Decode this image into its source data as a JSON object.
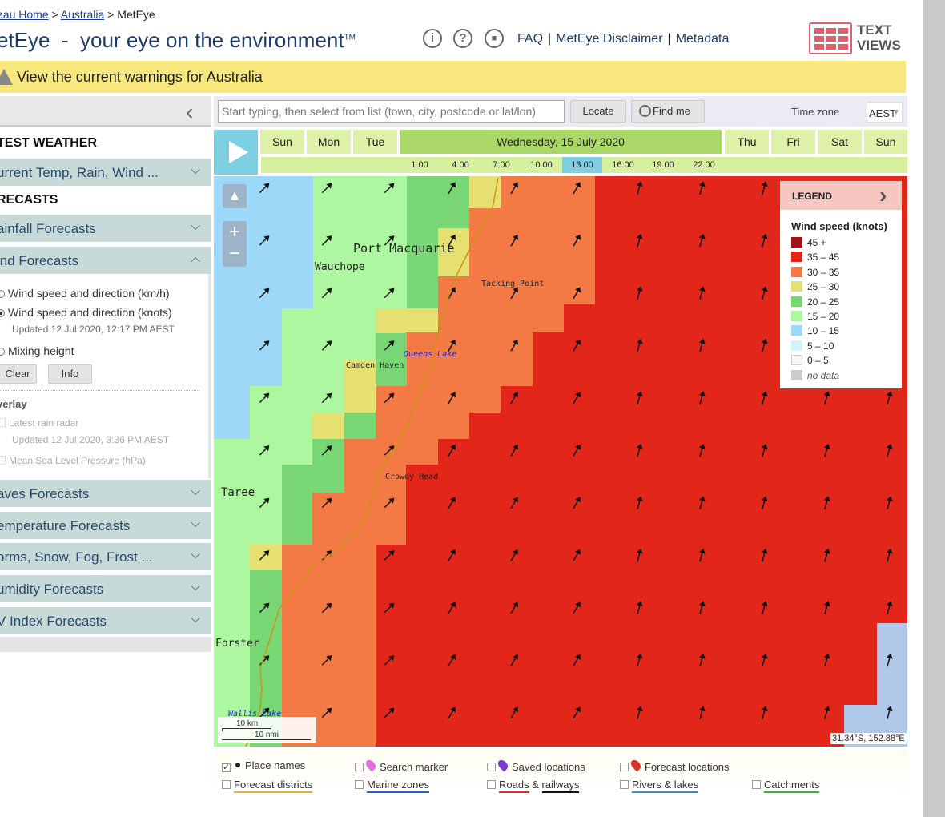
{
  "breadcrumbs": {
    "home": "eau Home",
    "sep1": ">",
    "country": "Australia",
    "sep2": ">",
    "current": "MetEye"
  },
  "header": {
    "title": "etEye  -  your eye on the environment",
    "tm": "TM",
    "info_label": "i",
    "help_label": "?",
    "comment_label": "■"
  },
  "toplinks": {
    "faq": "FAQ",
    "disclaimer": "MetEye Disclaimer",
    "metadata": "Metadata",
    "sep": "|"
  },
  "textviews": {
    "line1": "TEXT",
    "line2": "VIEWS"
  },
  "warning": {
    "text": "View the current warnings for Australia"
  },
  "sidebar": {
    "latest_heading": "TEST WEATHER",
    "current": "urrent Temp, Rain, Wind ...",
    "forecasts_heading": "RECASTS",
    "rainfall": "ainfall Forecasts",
    "wind": "ind Forecasts",
    "wind_opt1": "Wind speed and direction (km/h)",
    "wind_opt2": "Wind speed and direction (knots)",
    "wind_updated": "Updated 12 Jul 2020, 12:17 PM AEST",
    "wind_opt3": "Mixing height",
    "clear": "Clear",
    "info": "Info",
    "overlay_heading": "verlay",
    "overlay_radar": "Latest rain radar",
    "overlay_radar_updated": "Updated 12 Jul 2020, 3:36 PM AEST",
    "overlay_mslp": "Mean Sea Level Pressure (hPa)",
    "waves": "aves Forecasts",
    "temperature": "emperature Forecasts",
    "storms": "orms, Snow, Fog, Frost ...",
    "humidity": "umidity Forecasts",
    "uv": "V Index Forecasts"
  },
  "toolbar": {
    "search_placeholder": "Start typing, then select from list (town, city, postcode or lat/lon)",
    "locate": "Locate",
    "findme": "Find me",
    "tz_label": "Time zone",
    "tz_value": "AEST"
  },
  "timeline": {
    "days": [
      "Sun",
      "Mon",
      "Tue",
      "Wednesday, 15 July 2020",
      "Thu",
      "Fri",
      "Sat",
      "Sun"
    ],
    "hours": [
      "1:00",
      "4:00",
      "7:00",
      "10:00",
      "13:00",
      "16:00",
      "19:00",
      "22:00"
    ],
    "selected_hour": "13:00"
  },
  "legend": {
    "header": "LEGEND",
    "title": "Wind speed (knots)",
    "items": [
      {
        "label": "45 +",
        "color": "#a31015"
      },
      {
        "label": "35 – 45",
        "color": "#e3261a"
      },
      {
        "label": "30 – 35",
        "color": "#f47a45"
      },
      {
        "label": "25 – 30",
        "color": "#e6e070"
      },
      {
        "label": "20 – 25",
        "color": "#78d774"
      },
      {
        "label": "15 – 20",
        "color": "#adf7a0"
      },
      {
        "label": "10 – 15",
        "color": "#9dd8f8"
      },
      {
        "label": "5 – 10",
        "color": "#d5f2fb"
      },
      {
        "label": "0 – 5",
        "color": "#f7f7f7"
      },
      {
        "label": "no data",
        "color": "#cccccc"
      }
    ]
  },
  "map": {
    "places": {
      "port_macquarie": "Port Macquarie",
      "wauchope": "Wauchope",
      "tacking_point": "Tacking Point",
      "queens_lake": "Queens Lake",
      "camden_haven": "Camden Haven",
      "crowdy_head": "Crowdy Head",
      "taree": "Taree",
      "forster": "Forster",
      "wallis_lake": "Wallis Lake"
    },
    "scale_km": "10 km",
    "scale_nmi": "10 nmi",
    "coord": "31.34°S, 152.88°E",
    "zoom_in": "+",
    "zoom_out": "−"
  },
  "layers": {
    "place_names": "Place names",
    "search_marker": "Search marker",
    "saved_locations": "Saved locations",
    "forecast_locations": "Forecast locations",
    "forecast_districts": "Forecast districts",
    "marine_zones": "Marine zones",
    "roads": "Roads",
    "amp": "&",
    "railways": "railways",
    "rivers": "Rivers & lakes",
    "catchments": "Catchments"
  }
}
